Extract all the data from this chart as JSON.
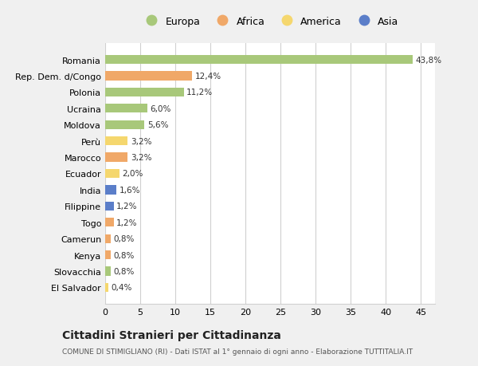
{
  "categories": [
    "El Salvador",
    "Slovacchia",
    "Kenya",
    "Camerun",
    "Togo",
    "Filippine",
    "India",
    "Ecuador",
    "Marocco",
    "Perù",
    "Moldova",
    "Ucraina",
    "Polonia",
    "Rep. Dem. d/Congo",
    "Romania"
  ],
  "values": [
    0.4,
    0.8,
    0.8,
    0.8,
    1.2,
    1.2,
    1.6,
    2.0,
    3.2,
    3.2,
    5.6,
    6.0,
    11.2,
    12.4,
    43.8
  ],
  "labels": [
    "0,4%",
    "0,8%",
    "0,8%",
    "0,8%",
    "1,2%",
    "1,2%",
    "1,6%",
    "2,0%",
    "3,2%",
    "3,2%",
    "5,6%",
    "6,0%",
    "11,2%",
    "12,4%",
    "43,8%"
  ],
  "colors": [
    "#f5d76e",
    "#a8c87a",
    "#f0a868",
    "#f0a868",
    "#f0a868",
    "#5b7ec9",
    "#5b7ec9",
    "#f5d76e",
    "#f0a868",
    "#f5d76e",
    "#a8c87a",
    "#a8c87a",
    "#a8c87a",
    "#f0a868",
    "#a8c87a"
  ],
  "continent_colors": {
    "Europa": "#a8c87a",
    "Africa": "#f0a868",
    "America": "#f5d76e",
    "Asia": "#5b7ec9"
  },
  "xlim": [
    0,
    47
  ],
  "xticks": [
    0,
    5,
    10,
    15,
    20,
    25,
    30,
    35,
    40,
    45
  ],
  "title1": "Cittadini Stranieri per Cittadinanza",
  "title2": "COMUNE DI STIMIGLIANO (RI) - Dati ISTAT al 1° gennaio di ogni anno - Elaborazione TUTTITALIA.IT",
  "background_color": "#f0f0f0",
  "bar_background": "#ffffff",
  "grid_color": "#d0d0d0"
}
